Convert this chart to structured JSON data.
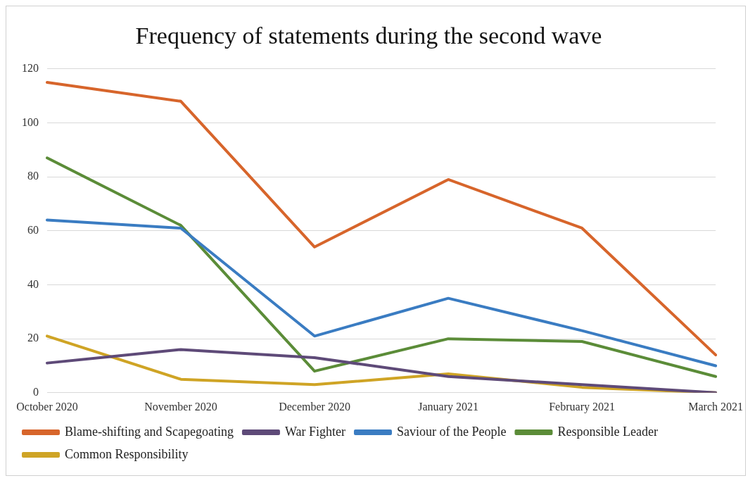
{
  "chart_data": {
    "type": "line",
    "title": "Frequency of statements during the second wave",
    "categories": [
      "October 2020",
      "November 2020",
      "December 2020",
      "January 2021",
      "February 2021",
      "March 2021"
    ],
    "series": [
      {
        "name": "Blame-shifting and Scapegoating",
        "color": "#d7652b",
        "values": [
          115,
          108,
          54,
          79,
          61,
          14
        ]
      },
      {
        "name": "War Fighter",
        "color": "#5e4a78",
        "values": [
          11,
          16,
          13,
          6,
          3,
          0
        ]
      },
      {
        "name": "Saviour of the People",
        "color": "#3a7cc2",
        "values": [
          64,
          61,
          21,
          35,
          23,
          10
        ]
      },
      {
        "name": "Responsible Leader",
        "color": "#5b8c38",
        "values": [
          87,
          62,
          8,
          20,
          19,
          6
        ]
      },
      {
        "name": "Common Responsibility",
        "color": "#cfa425",
        "values": [
          21,
          5,
          3,
          7,
          2,
          0
        ]
      }
    ],
    "ylim": [
      0,
      120
    ],
    "yticks": [
      0,
      20,
      40,
      60,
      80,
      100,
      120
    ],
    "grid": "y",
    "legend": "bottom",
    "marker": "none",
    "line_style": "solid"
  }
}
